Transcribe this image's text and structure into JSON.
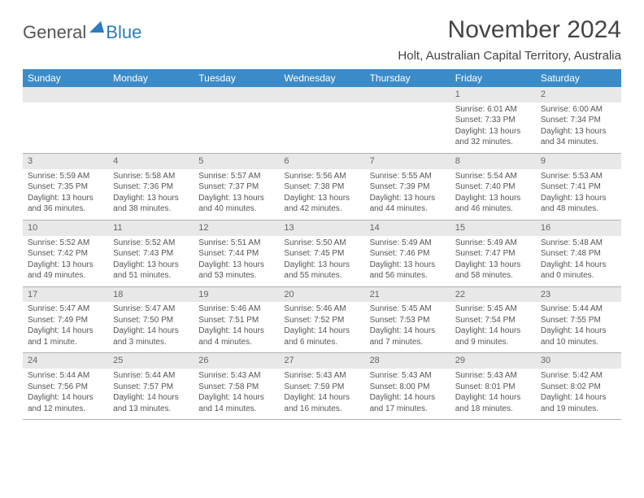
{
  "logo": {
    "general": "General",
    "blue": "Blue"
  },
  "title": "November 2024",
  "location": "Holt, Australian Capital Territory, Australia",
  "colors": {
    "header_bg": "#3b8bc9",
    "header_text": "#ffffff",
    "daynum_bg": "#e8e8e8",
    "border": "#b0b0b0",
    "logo_blue": "#2b7bbf",
    "text": "#555555"
  },
  "weekdays": [
    "Sunday",
    "Monday",
    "Tuesday",
    "Wednesday",
    "Thursday",
    "Friday",
    "Saturday"
  ],
  "weeks": [
    [
      {
        "n": "",
        "lines": []
      },
      {
        "n": "",
        "lines": []
      },
      {
        "n": "",
        "lines": []
      },
      {
        "n": "",
        "lines": []
      },
      {
        "n": "",
        "lines": []
      },
      {
        "n": "1",
        "lines": [
          "Sunrise: 6:01 AM",
          "Sunset: 7:33 PM",
          "Daylight: 13 hours",
          "and 32 minutes."
        ]
      },
      {
        "n": "2",
        "lines": [
          "Sunrise: 6:00 AM",
          "Sunset: 7:34 PM",
          "Daylight: 13 hours",
          "and 34 minutes."
        ]
      }
    ],
    [
      {
        "n": "3",
        "lines": [
          "Sunrise: 5:59 AM",
          "Sunset: 7:35 PM",
          "Daylight: 13 hours",
          "and 36 minutes."
        ]
      },
      {
        "n": "4",
        "lines": [
          "Sunrise: 5:58 AM",
          "Sunset: 7:36 PM",
          "Daylight: 13 hours",
          "and 38 minutes."
        ]
      },
      {
        "n": "5",
        "lines": [
          "Sunrise: 5:57 AM",
          "Sunset: 7:37 PM",
          "Daylight: 13 hours",
          "and 40 minutes."
        ]
      },
      {
        "n": "6",
        "lines": [
          "Sunrise: 5:56 AM",
          "Sunset: 7:38 PM",
          "Daylight: 13 hours",
          "and 42 minutes."
        ]
      },
      {
        "n": "7",
        "lines": [
          "Sunrise: 5:55 AM",
          "Sunset: 7:39 PM",
          "Daylight: 13 hours",
          "and 44 minutes."
        ]
      },
      {
        "n": "8",
        "lines": [
          "Sunrise: 5:54 AM",
          "Sunset: 7:40 PM",
          "Daylight: 13 hours",
          "and 46 minutes."
        ]
      },
      {
        "n": "9",
        "lines": [
          "Sunrise: 5:53 AM",
          "Sunset: 7:41 PM",
          "Daylight: 13 hours",
          "and 48 minutes."
        ]
      }
    ],
    [
      {
        "n": "10",
        "lines": [
          "Sunrise: 5:52 AM",
          "Sunset: 7:42 PM",
          "Daylight: 13 hours",
          "and 49 minutes."
        ]
      },
      {
        "n": "11",
        "lines": [
          "Sunrise: 5:52 AM",
          "Sunset: 7:43 PM",
          "Daylight: 13 hours",
          "and 51 minutes."
        ]
      },
      {
        "n": "12",
        "lines": [
          "Sunrise: 5:51 AM",
          "Sunset: 7:44 PM",
          "Daylight: 13 hours",
          "and 53 minutes."
        ]
      },
      {
        "n": "13",
        "lines": [
          "Sunrise: 5:50 AM",
          "Sunset: 7:45 PM",
          "Daylight: 13 hours",
          "and 55 minutes."
        ]
      },
      {
        "n": "14",
        "lines": [
          "Sunrise: 5:49 AM",
          "Sunset: 7:46 PM",
          "Daylight: 13 hours",
          "and 56 minutes."
        ]
      },
      {
        "n": "15",
        "lines": [
          "Sunrise: 5:49 AM",
          "Sunset: 7:47 PM",
          "Daylight: 13 hours",
          "and 58 minutes."
        ]
      },
      {
        "n": "16",
        "lines": [
          "Sunrise: 5:48 AM",
          "Sunset: 7:48 PM",
          "Daylight: 14 hours",
          "and 0 minutes."
        ]
      }
    ],
    [
      {
        "n": "17",
        "lines": [
          "Sunrise: 5:47 AM",
          "Sunset: 7:49 PM",
          "Daylight: 14 hours",
          "and 1 minute."
        ]
      },
      {
        "n": "18",
        "lines": [
          "Sunrise: 5:47 AM",
          "Sunset: 7:50 PM",
          "Daylight: 14 hours",
          "and 3 minutes."
        ]
      },
      {
        "n": "19",
        "lines": [
          "Sunrise: 5:46 AM",
          "Sunset: 7:51 PM",
          "Daylight: 14 hours",
          "and 4 minutes."
        ]
      },
      {
        "n": "20",
        "lines": [
          "Sunrise: 5:46 AM",
          "Sunset: 7:52 PM",
          "Daylight: 14 hours",
          "and 6 minutes."
        ]
      },
      {
        "n": "21",
        "lines": [
          "Sunrise: 5:45 AM",
          "Sunset: 7:53 PM",
          "Daylight: 14 hours",
          "and 7 minutes."
        ]
      },
      {
        "n": "22",
        "lines": [
          "Sunrise: 5:45 AM",
          "Sunset: 7:54 PM",
          "Daylight: 14 hours",
          "and 9 minutes."
        ]
      },
      {
        "n": "23",
        "lines": [
          "Sunrise: 5:44 AM",
          "Sunset: 7:55 PM",
          "Daylight: 14 hours",
          "and 10 minutes."
        ]
      }
    ],
    [
      {
        "n": "24",
        "lines": [
          "Sunrise: 5:44 AM",
          "Sunset: 7:56 PM",
          "Daylight: 14 hours",
          "and 12 minutes."
        ]
      },
      {
        "n": "25",
        "lines": [
          "Sunrise: 5:44 AM",
          "Sunset: 7:57 PM",
          "Daylight: 14 hours",
          "and 13 minutes."
        ]
      },
      {
        "n": "26",
        "lines": [
          "Sunrise: 5:43 AM",
          "Sunset: 7:58 PM",
          "Daylight: 14 hours",
          "and 14 minutes."
        ]
      },
      {
        "n": "27",
        "lines": [
          "Sunrise: 5:43 AM",
          "Sunset: 7:59 PM",
          "Daylight: 14 hours",
          "and 16 minutes."
        ]
      },
      {
        "n": "28",
        "lines": [
          "Sunrise: 5:43 AM",
          "Sunset: 8:00 PM",
          "Daylight: 14 hours",
          "and 17 minutes."
        ]
      },
      {
        "n": "29",
        "lines": [
          "Sunrise: 5:43 AM",
          "Sunset: 8:01 PM",
          "Daylight: 14 hours",
          "and 18 minutes."
        ]
      },
      {
        "n": "30",
        "lines": [
          "Sunrise: 5:42 AM",
          "Sunset: 8:02 PM",
          "Daylight: 14 hours",
          "and 19 minutes."
        ]
      }
    ]
  ]
}
